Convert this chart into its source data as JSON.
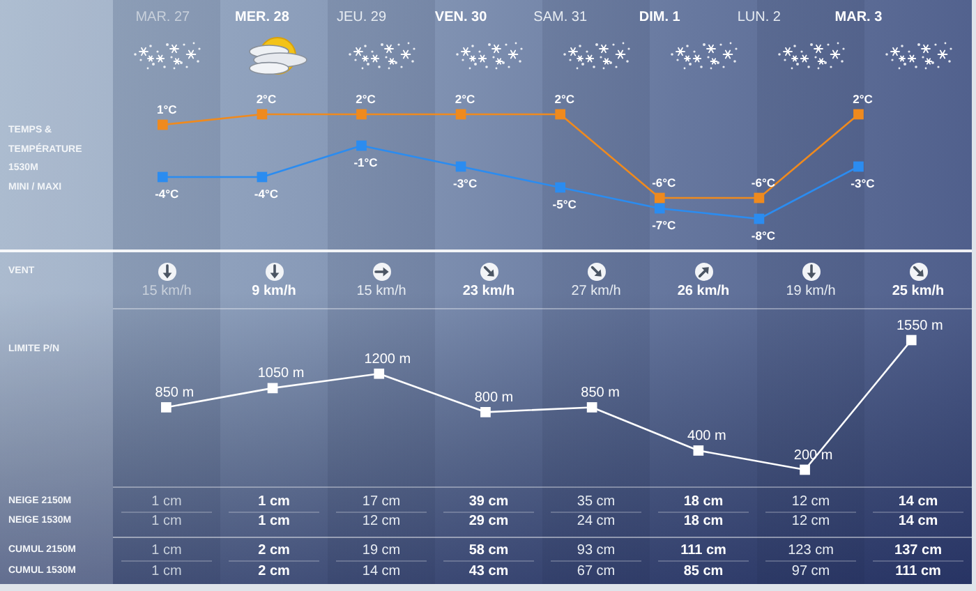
{
  "chart_data": [
    {
      "type": "line",
      "ylabel": "TEMPS &\nTEMPÉRATURE\n1530M\nMINI / MAXI",
      "categories": [
        "MAR. 27",
        "MER. 28",
        "JEU. 29",
        "VEN. 30",
        "SAM. 31",
        "DIM. 1",
        "LUN. 2",
        "MAR. 3"
      ],
      "tick_labels": "x",
      "marker": "square",
      "line_style": "solid",
      "series": [
        {
          "color": "#ef8a1e",
          "values": [
            1,
            2,
            2,
            2,
            2,
            -6,
            -6,
            2
          ],
          "value_labels": [
            "1°C",
            "2°C",
            "2°C",
            "2°C",
            "2°C",
            "-6°C",
            "-6°C",
            "2°C"
          ]
        },
        {
          "color": "#2b8cf0",
          "values": [
            -4,
            -4,
            -1,
            -3,
            -5,
            -7,
            -8,
            -3
          ],
          "value_labels": [
            "-4°C",
            "-4°C",
            "-1°C",
            "-3°C",
            "-5°C",
            "-7°C",
            "-8°C",
            "-3°C"
          ]
        }
      ]
    },
    {
      "type": "other",
      "ylabel": "VENT",
      "values": [
        15,
        9,
        15,
        23,
        27,
        26,
        19,
        25
      ],
      "value_labels": [
        "15 km/h",
        "9 km/h",
        "15 km/h",
        "23 km/h",
        "27 km/h",
        "26 km/h",
        "19 km/h",
        "25 km/h"
      ]
    },
    {
      "type": "line",
      "ylabel": "LIMITE P/N",
      "categories": [
        null,
        null,
        null,
        null,
        null,
        null,
        null,
        null
      ],
      "tick_labels": false,
      "marker": "square",
      "line_style": "solid",
      "color": "#ffffff",
      "values": [
        850,
        1050,
        1200,
        800,
        850,
        400,
        200,
        1550
      ],
      "value_labels": [
        "850 m",
        "1050 m",
        "1200 m",
        "800 m",
        "850 m",
        "400 m",
        "200 m",
        "1550 m"
      ]
    },
    {
      "type": "other",
      "ylabel": "NEIGE 2150M",
      "values": [
        1,
        1,
        17,
        39,
        35,
        18,
        12,
        14
      ],
      "value_labels": [
        "1 cm",
        "1 cm",
        "17 cm",
        "39 cm",
        "35 cm",
        "18 cm",
        "12 cm",
        "14 cm"
      ]
    },
    {
      "type": "other",
      "ylabel": "NEIGE 1530M",
      "values": [
        1,
        1,
        12,
        29,
        24,
        18,
        12,
        14
      ],
      "value_labels": [
        "1 cm",
        "1 cm",
        "12 cm",
        "29 cm",
        "24 cm",
        "18 cm",
        "12 cm",
        "14 cm"
      ]
    },
    {
      "type": "other",
      "ylabel": "CUMUL 2150M",
      "values": [
        1,
        2,
        19,
        58,
        93,
        111,
        123,
        137
      ],
      "value_labels": [
        "1 cm",
        "2 cm",
        "19 cm",
        "58 cm",
        "93 cm",
        "111 cm",
        "123 cm",
        "137 cm"
      ]
    },
    {
      "type": "other",
      "ylabel": "CUMUL 1530M",
      "values": [
        1,
        2,
        14,
        43,
        67,
        85,
        97,
        111
      ],
      "value_labels": [
        "1 cm",
        "2 cm",
        "14 cm",
        "43 cm",
        "67 cm",
        "85 cm",
        "97 cm",
        "111 cm"
      ]
    }
  ]
}
